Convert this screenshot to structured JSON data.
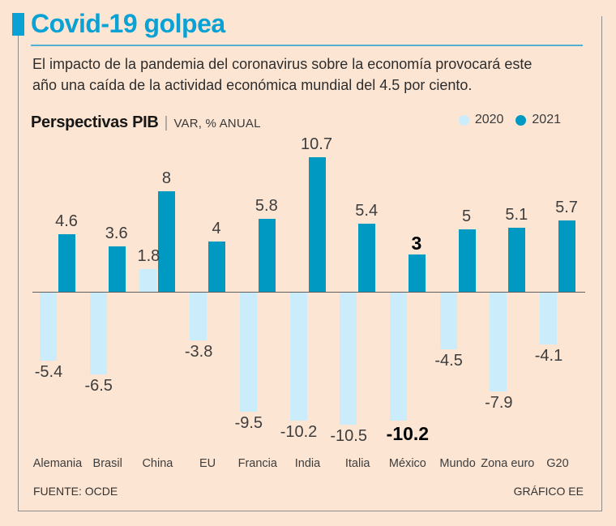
{
  "page": {
    "background_color": "#fce5d3",
    "frame_color": "#8d8d8d"
  },
  "header": {
    "title": "Covid-19 golpea",
    "title_color": "#0aa2d4",
    "subtitle_lines": [
      "El impacto de la pandemia del coronavirus sobre la economía provocará este",
      "año una caída de la actividad económica mundial del 4.5 por ciento."
    ]
  },
  "chart_header": {
    "title": "Perspectivas PIB",
    "separator": "|",
    "units": "VAR, % ANUAL"
  },
  "legend": {
    "items": [
      {
        "label": "2020",
        "color": "#cbecfb"
      },
      {
        "label": "2021",
        "color": "#0099c2"
      }
    ]
  },
  "footer": {
    "source": "FUENTE: OCDE",
    "credit": "GRÁFICO EE"
  },
  "chart_data": {
    "type": "bar",
    "title": "Perspectivas PIB",
    "units": "VAR, % ANUAL",
    "categories": [
      "Alemania",
      "Brasil",
      "China",
      "EU",
      "Francia",
      "India",
      "Italia",
      "México",
      "Mundo",
      "Zona euro",
      "G20"
    ],
    "series": [
      {
        "name": "2020",
        "color": "#cbecfb",
        "values": [
          -5.4,
          -6.5,
          1.8,
          -3.8,
          -9.5,
          -10.2,
          -10.5,
          -10.2,
          -4.5,
          -7.9,
          -4.1
        ],
        "labels": [
          "-5.4",
          "-6.5",
          "1.8",
          "-3.8",
          "-9.5",
          "-10.2",
          "-10.5",
          "-10.2",
          "-4.5",
          "-7.9",
          "-4.1"
        ]
      },
      {
        "name": "2021",
        "color": "#0099c2",
        "values": [
          4.6,
          3.6,
          8,
          4,
          5.8,
          10.7,
          5.4,
          3,
          5,
          5.1,
          5.7
        ],
        "labels": [
          "4.6",
          "3.6",
          "8",
          "4",
          "5.8",
          "10.7",
          "5.4",
          "3",
          "5",
          "5.1",
          "5.7"
        ]
      }
    ],
    "emphasis_category": "México",
    "baseline": 0,
    "ylim": [
      -11,
      11
    ],
    "grid": false,
    "value_labels": true,
    "legend_position": "top-right"
  }
}
